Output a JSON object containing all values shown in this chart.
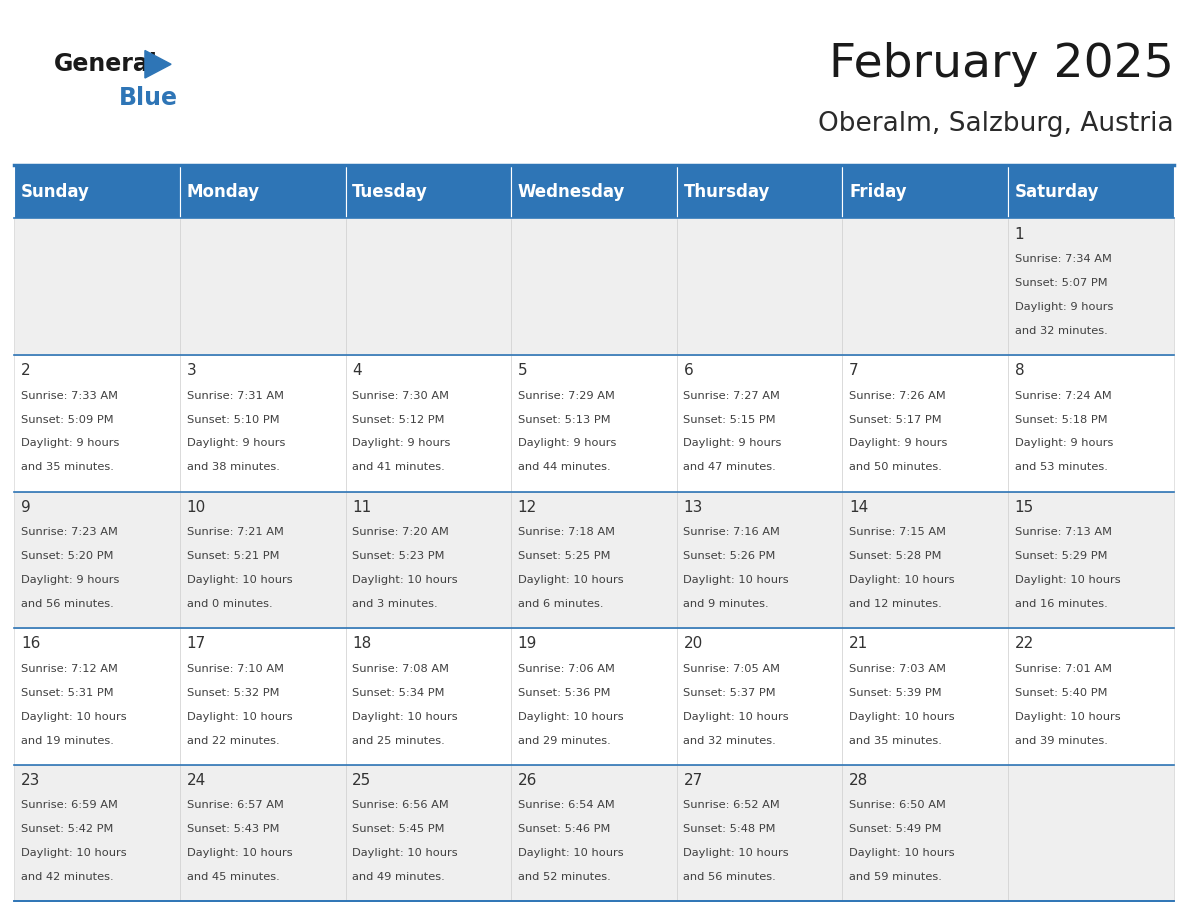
{
  "title": "February 2025",
  "subtitle": "Oberalm, Salzburg, Austria",
  "header_color": "#2E75B6",
  "header_text_color": "#FFFFFF",
  "background_color": "#FFFFFF",
  "cell_bg_gray": "#EFEFEF",
  "cell_bg_white": "#FFFFFF",
  "day_headers": [
    "Sunday",
    "Monday",
    "Tuesday",
    "Wednesday",
    "Thursday",
    "Friday",
    "Saturday"
  ],
  "text_color": "#404040",
  "day_num_color": "#333333",
  "line_color": "#2E75B6",
  "logo_text_color": "#1a1a1a",
  "logo_blue_color": "#2E75B6",
  "days": [
    {
      "day": 1,
      "col": 6,
      "row": 0,
      "sunrise": "7:34 AM",
      "sunset": "5:07 PM",
      "daylight_h": "9 hours",
      "daylight_m": "and 32 minutes."
    },
    {
      "day": 2,
      "col": 0,
      "row": 1,
      "sunrise": "7:33 AM",
      "sunset": "5:09 PM",
      "daylight_h": "9 hours",
      "daylight_m": "and 35 minutes."
    },
    {
      "day": 3,
      "col": 1,
      "row": 1,
      "sunrise": "7:31 AM",
      "sunset": "5:10 PM",
      "daylight_h": "9 hours",
      "daylight_m": "and 38 minutes."
    },
    {
      "day": 4,
      "col": 2,
      "row": 1,
      "sunrise": "7:30 AM",
      "sunset": "5:12 PM",
      "daylight_h": "9 hours",
      "daylight_m": "and 41 minutes."
    },
    {
      "day": 5,
      "col": 3,
      "row": 1,
      "sunrise": "7:29 AM",
      "sunset": "5:13 PM",
      "daylight_h": "9 hours",
      "daylight_m": "and 44 minutes."
    },
    {
      "day": 6,
      "col": 4,
      "row": 1,
      "sunrise": "7:27 AM",
      "sunset": "5:15 PM",
      "daylight_h": "9 hours",
      "daylight_m": "and 47 minutes."
    },
    {
      "day": 7,
      "col": 5,
      "row": 1,
      "sunrise": "7:26 AM",
      "sunset": "5:17 PM",
      "daylight_h": "9 hours",
      "daylight_m": "and 50 minutes."
    },
    {
      "day": 8,
      "col": 6,
      "row": 1,
      "sunrise": "7:24 AM",
      "sunset": "5:18 PM",
      "daylight_h": "9 hours",
      "daylight_m": "and 53 minutes."
    },
    {
      "day": 9,
      "col": 0,
      "row": 2,
      "sunrise": "7:23 AM",
      "sunset": "5:20 PM",
      "daylight_h": "9 hours",
      "daylight_m": "and 56 minutes."
    },
    {
      "day": 10,
      "col": 1,
      "row": 2,
      "sunrise": "7:21 AM",
      "sunset": "5:21 PM",
      "daylight_h": "10 hours",
      "daylight_m": "and 0 minutes."
    },
    {
      "day": 11,
      "col": 2,
      "row": 2,
      "sunrise": "7:20 AM",
      "sunset": "5:23 PM",
      "daylight_h": "10 hours",
      "daylight_m": "and 3 minutes."
    },
    {
      "day": 12,
      "col": 3,
      "row": 2,
      "sunrise": "7:18 AM",
      "sunset": "5:25 PM",
      "daylight_h": "10 hours",
      "daylight_m": "and 6 minutes."
    },
    {
      "day": 13,
      "col": 4,
      "row": 2,
      "sunrise": "7:16 AM",
      "sunset": "5:26 PM",
      "daylight_h": "10 hours",
      "daylight_m": "and 9 minutes."
    },
    {
      "day": 14,
      "col": 5,
      "row": 2,
      "sunrise": "7:15 AM",
      "sunset": "5:28 PM",
      "daylight_h": "10 hours",
      "daylight_m": "and 12 minutes."
    },
    {
      "day": 15,
      "col": 6,
      "row": 2,
      "sunrise": "7:13 AM",
      "sunset": "5:29 PM",
      "daylight_h": "10 hours",
      "daylight_m": "and 16 minutes."
    },
    {
      "day": 16,
      "col": 0,
      "row": 3,
      "sunrise": "7:12 AM",
      "sunset": "5:31 PM",
      "daylight_h": "10 hours",
      "daylight_m": "and 19 minutes."
    },
    {
      "day": 17,
      "col": 1,
      "row": 3,
      "sunrise": "7:10 AM",
      "sunset": "5:32 PM",
      "daylight_h": "10 hours",
      "daylight_m": "and 22 minutes."
    },
    {
      "day": 18,
      "col": 2,
      "row": 3,
      "sunrise": "7:08 AM",
      "sunset": "5:34 PM",
      "daylight_h": "10 hours",
      "daylight_m": "and 25 minutes."
    },
    {
      "day": 19,
      "col": 3,
      "row": 3,
      "sunrise": "7:06 AM",
      "sunset": "5:36 PM",
      "daylight_h": "10 hours",
      "daylight_m": "and 29 minutes."
    },
    {
      "day": 20,
      "col": 4,
      "row": 3,
      "sunrise": "7:05 AM",
      "sunset": "5:37 PM",
      "daylight_h": "10 hours",
      "daylight_m": "and 32 minutes."
    },
    {
      "day": 21,
      "col": 5,
      "row": 3,
      "sunrise": "7:03 AM",
      "sunset": "5:39 PM",
      "daylight_h": "10 hours",
      "daylight_m": "and 35 minutes."
    },
    {
      "day": 22,
      "col": 6,
      "row": 3,
      "sunrise": "7:01 AM",
      "sunset": "5:40 PM",
      "daylight_h": "10 hours",
      "daylight_m": "and 39 minutes."
    },
    {
      "day": 23,
      "col": 0,
      "row": 4,
      "sunrise": "6:59 AM",
      "sunset": "5:42 PM",
      "daylight_h": "10 hours",
      "daylight_m": "and 42 minutes."
    },
    {
      "day": 24,
      "col": 1,
      "row": 4,
      "sunrise": "6:57 AM",
      "sunset": "5:43 PM",
      "daylight_h": "10 hours",
      "daylight_m": "and 45 minutes."
    },
    {
      "day": 25,
      "col": 2,
      "row": 4,
      "sunrise": "6:56 AM",
      "sunset": "5:45 PM",
      "daylight_h": "10 hours",
      "daylight_m": "and 49 minutes."
    },
    {
      "day": 26,
      "col": 3,
      "row": 4,
      "sunrise": "6:54 AM",
      "sunset": "5:46 PM",
      "daylight_h": "10 hours",
      "daylight_m": "and 52 minutes."
    },
    {
      "day": 27,
      "col": 4,
      "row": 4,
      "sunrise": "6:52 AM",
      "sunset": "5:48 PM",
      "daylight_h": "10 hours",
      "daylight_m": "and 56 minutes."
    },
    {
      "day": 28,
      "col": 5,
      "row": 4,
      "sunrise": "6:50 AM",
      "sunset": "5:49 PM",
      "daylight_h": "10 hours",
      "daylight_m": "and 59 minutes."
    }
  ]
}
